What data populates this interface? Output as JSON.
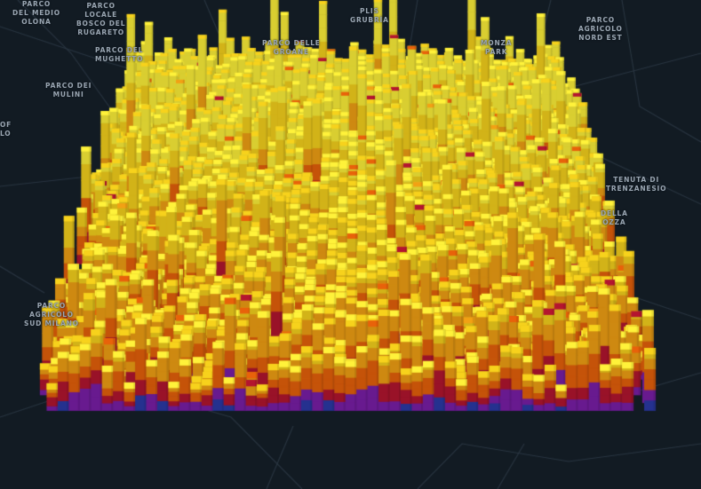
{
  "map": {
    "theme": "dark",
    "background_color": "#121b23",
    "road_color": "#2a3642",
    "layer_type": "3d-hexbin-extrusion",
    "color_ramp": [
      "#2c3aa8",
      "#7a1ea8",
      "#b4152f",
      "#e8620a",
      "#f2a114",
      "#f7d21c",
      "#fff23a"
    ]
  },
  "place_labels": [
    {
      "id": "parco-del-medio-olona",
      "text": "PARCO\nDEL MEDIO\nOLONA"
    },
    {
      "id": "parco-locale-bosco-del-rugareto",
      "text": "PARCO\nLOCALE\nBOSCO DEL\nRUGARETO"
    },
    {
      "id": "plis-grubria",
      "text": "PLIS\nGRUBRÌA"
    },
    {
      "id": "parco-agricolo-nord-est",
      "text": "PARCO\nAGRICOLO\nNORD EST"
    },
    {
      "id": "parco-del-mughetto",
      "text": "PARCO DEL\nMUGHETTO"
    },
    {
      "id": "parco-delle-groane",
      "text": "PARCO DELLE\nGROANE"
    },
    {
      "id": "monza-park",
      "text": "MONZA\nPARK"
    },
    {
      "id": "parco-dei-mulini",
      "text": "PARCO DEI\nMULINI"
    },
    {
      "id": "edge-of-lo",
      "text": "OF\nLO"
    },
    {
      "id": "tenuta-di-trenzanesio",
      "text": "TENUTA DI\nTRENZANESIO"
    },
    {
      "id": "della-ozza",
      "text": "DELLA\nOZZA"
    },
    {
      "id": "parco-agricolo-sud-milano",
      "text": "PARCO\nAGRICOLO\nSUD MILANO"
    }
  ]
}
